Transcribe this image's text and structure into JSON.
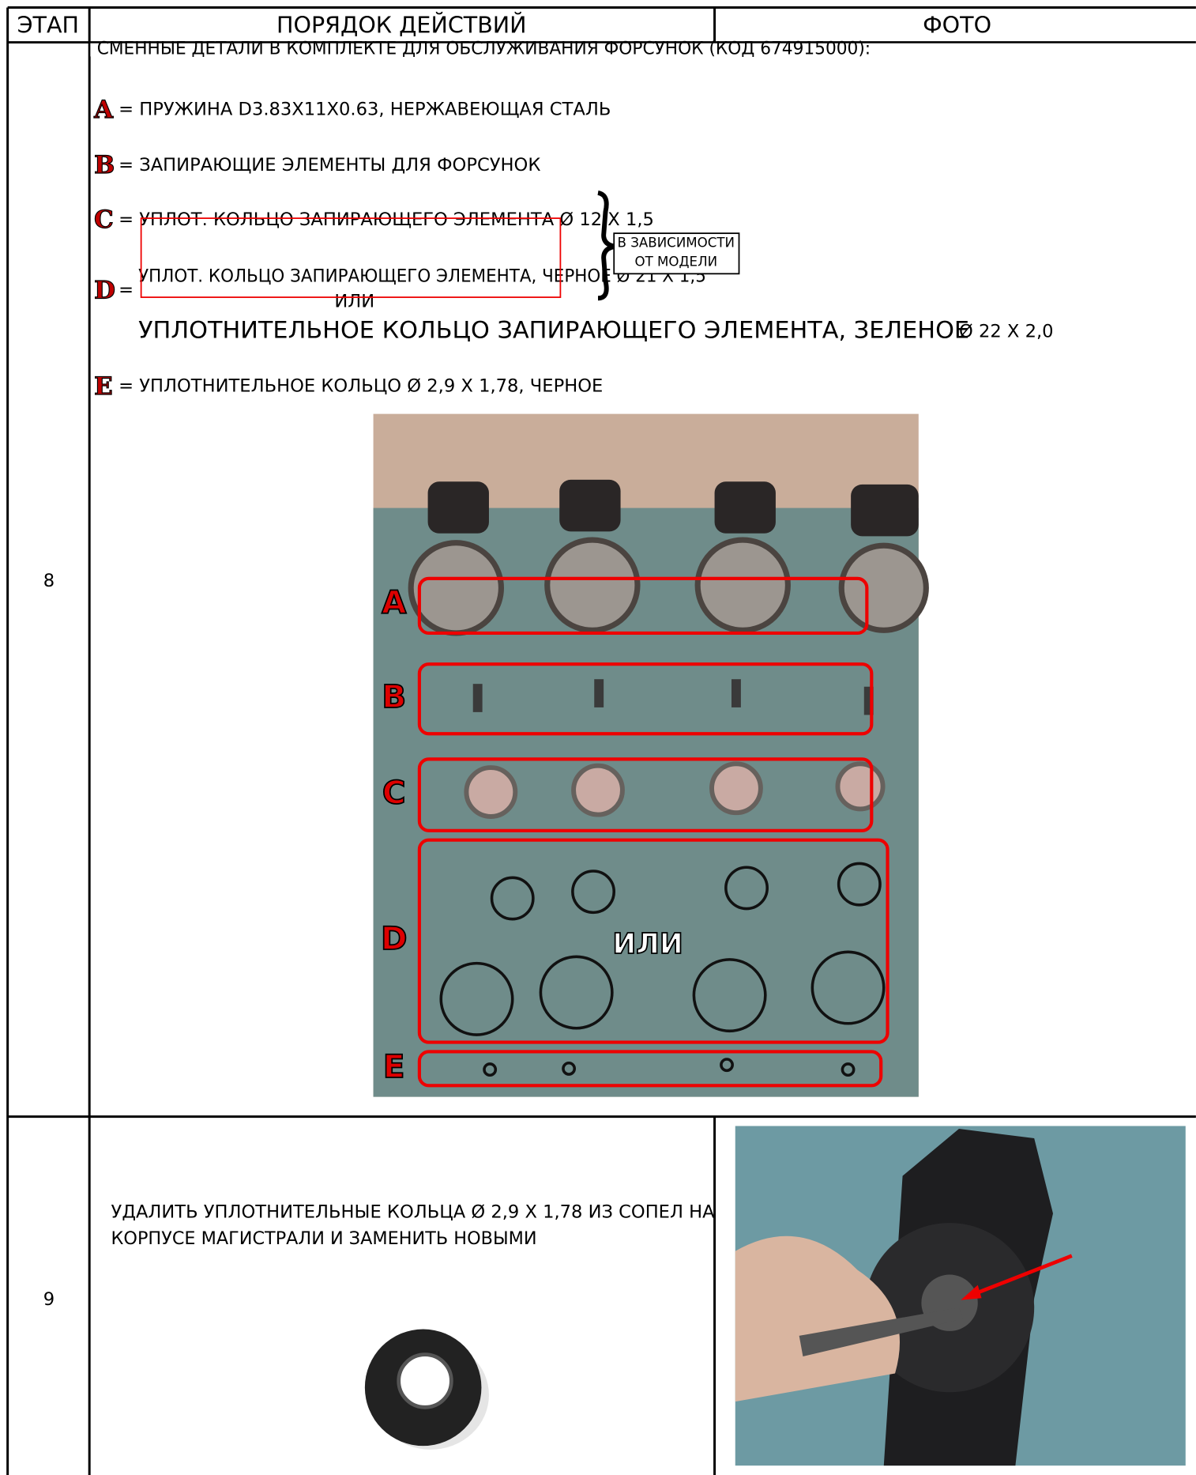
{
  "header": {
    "columns": [
      "ЭТАП",
      "ПОРЯДОК ДЕЙСТВИЙ",
      "ФОТО"
    ]
  },
  "rows": [
    {
      "step": "8",
      "intro": "СМЕННЫЕ ДЕТАЛИ В КОМПЛЕКТЕ ДЛЯ ОБСЛУЖИВАНИЯ ФОРСУНОК (КОД 674915000):",
      "items": [
        {
          "letter": "A",
          "text": "= ПРУЖИНА D3.83X11X0.63, НЕРЖАВЕЮЩАЯ СТАЛЬ"
        },
        {
          "letter": "B",
          "text": "= ЗАПИРАЮЩИЕ ЭЛЕМЕНТЫ ДЛЯ ФОРСУНОК"
        },
        {
          "letter": "C",
          "text": "= УПЛОТ. КОЛЬЦО ЗАПИРАЮЩЕГО ЭЛЕМЕНТА Ø 12 X 1,5"
        },
        {
          "letter": "D",
          "text": "="
        },
        {
          "letter": "E",
          "text": "= УПЛОТНИТЕЛЬНОЕ КОЛЬЦО Ø 2,9 X 1,78, ЧЕРНОЕ"
        }
      ],
      "d_option_1": "УПЛОТ. КОЛЬЦО ЗАПИРАЮЩЕГО ЭЛЕМЕНТА, ЧЕРНОЕ Ø 21 X 1,5",
      "or": "ИЛИ",
      "d_option_2": "УПЛОТНИТЕЛЬНОЕ КОЛЬЦО ЗАПИРАЮЩЕГО ЭЛЕМЕНТА, ЗЕЛЕНОЕ",
      "d_option_2_size": "Ø 22 X 2,0",
      "note": [
        "В ЗАВИСИМОСТИ",
        "ОТ МОДЕЛИ"
      ],
      "photo": {
        "labels": [
          "A",
          "B",
          "C",
          "D",
          "E"
        ],
        "or": "ИЛИ"
      }
    },
    {
      "step": "9",
      "text": [
        "УДАЛИТЬ УПЛОТНИТЕЛЬНЫЕ КОЛЬЦА Ø 2,9 X 1,78 ИЗ СОПЕЛ НА",
        "КОРПУСЕ МАГИСТРАЛИ И ЗАМЕНИТЬ НОВЫМИ"
      ]
    }
  ]
}
